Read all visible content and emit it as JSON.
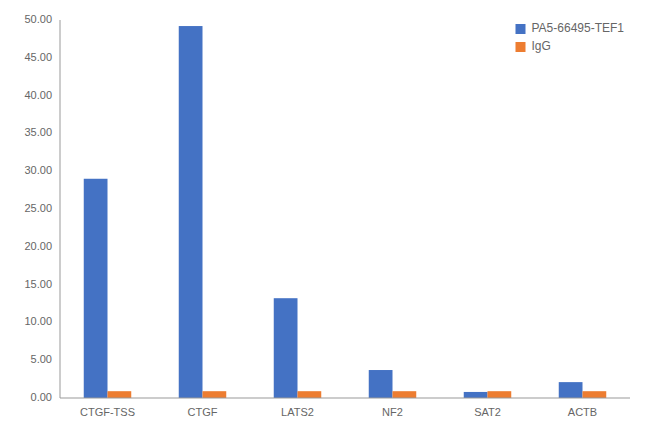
{
  "chart_data": {
    "type": "bar",
    "categories": [
      "CTGF-TSS",
      "CTGF",
      "LATS2",
      "NF2",
      "SAT2",
      "ACTB"
    ],
    "series": [
      {
        "name": "PA5-66495-TEF1",
        "color": "#4472C4",
        "values": [
          29.0,
          49.2,
          13.2,
          3.7,
          0.8,
          2.1
        ]
      },
      {
        "name": "IgG",
        "color": "#ED7D31",
        "values": [
          0.9,
          0.9,
          0.9,
          0.9,
          0.9,
          0.9
        ]
      }
    ],
    "ylim": [
      0,
      50
    ],
    "yticks": [
      {
        "value": 0,
        "label": "0.00"
      },
      {
        "value": 5,
        "label": "5.00"
      },
      {
        "value": 10,
        "label": "10.00"
      },
      {
        "value": 15,
        "label": "15.00"
      },
      {
        "value": 20,
        "label": "20.00"
      },
      {
        "value": 25,
        "label": "25.00"
      },
      {
        "value": 30,
        "label": "30.00"
      },
      {
        "value": 35,
        "label": "35.00"
      },
      {
        "value": 40,
        "label": "40.00"
      },
      {
        "value": 45,
        "label": "45.00"
      },
      {
        "value": 50,
        "label": "50.00"
      }
    ],
    "grid": false,
    "legend": "upper right"
  }
}
